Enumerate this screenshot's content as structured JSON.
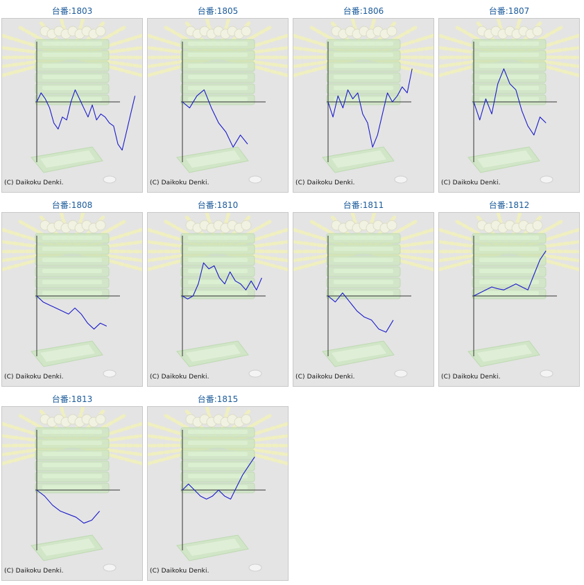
{
  "copyright": "(C) Daikoku Denki.",
  "chart_data": [
    {
      "type": "line",
      "title": "台番:1803",
      "ylim": [
        -1,
        1
      ],
      "values": [
        0,
        0.15,
        0.05,
        -0.1,
        -0.35,
        -0.45,
        -0.25,
        -0.3,
        0,
        0.2,
        0.05,
        -0.1,
        -0.25,
        -0.05,
        -0.3,
        -0.2,
        -0.25,
        -0.35,
        -0.4,
        -0.7,
        -0.8,
        -0.5,
        -0.2,
        0.1
      ]
    },
    {
      "type": "line",
      "title": "台番:1805",
      "ylim": [
        -1,
        1
      ],
      "values": [
        0,
        -0.1,
        0.1,
        0.2,
        -0.1,
        -0.35,
        -0.5,
        -0.75,
        -0.55,
        -0.7
      ]
    },
    {
      "type": "line",
      "title": "台番:1806",
      "ylim": [
        -1,
        1
      ],
      "values": [
        0,
        -0.25,
        0.1,
        -0.1,
        0.2,
        0.05,
        0.15,
        -0.2,
        -0.35,
        -0.75,
        -0.55,
        -0.2,
        0.15,
        0,
        0.1,
        0.25,
        0.15,
        0.55
      ]
    },
    {
      "type": "line",
      "title": "台番:1807",
      "ylim": [
        -1,
        1
      ],
      "values": [
        0,
        -0.3,
        0.05,
        -0.2,
        0.3,
        0.55,
        0.3,
        0.2,
        -0.15,
        -0.4,
        -0.55,
        -0.25,
        -0.35
      ]
    },
    {
      "type": "line",
      "title": "台番:1808",
      "ylim": [
        -1,
        1
      ],
      "values": [
        0,
        -0.1,
        -0.15,
        -0.2,
        -0.25,
        -0.3,
        -0.2,
        -0.3,
        -0.45,
        -0.55,
        -0.45,
        -0.5
      ]
    },
    {
      "type": "line",
      "title": "台番:1810",
      "ylim": [
        -1,
        1
      ],
      "values": [
        0,
        -0.05,
        0,
        0.2,
        0.55,
        0.45,
        0.5,
        0.3,
        0.2,
        0.4,
        0.25,
        0.2,
        0.1,
        0.25,
        0.1,
        0.3
      ]
    },
    {
      "type": "line",
      "title": "台番:1811",
      "ylim": [
        -1,
        1
      ],
      "values": [
        0,
        -0.1,
        0.05,
        -0.1,
        -0.25,
        -0.35,
        -0.4,
        -0.55,
        -0.6,
        -0.4
      ]
    },
    {
      "type": "line",
      "title": "台番:1812",
      "ylim": [
        -1,
        1
      ],
      "values": [
        0,
        0.05,
        0.1,
        0.15,
        0.12,
        0.1,
        0.15,
        0.2,
        0.15,
        0.1,
        0.35,
        0.6,
        0.75
      ]
    },
    {
      "type": "line",
      "title": "台番:1813",
      "ylim": [
        -1,
        1
      ],
      "values": [
        0,
        -0.1,
        -0.25,
        -0.35,
        -0.4,
        -0.45,
        -0.55,
        -0.5,
        -0.35
      ]
    },
    {
      "type": "line",
      "title": "台番:1815",
      "ylim": [
        -1,
        1
      ],
      "values": [
        0,
        0.1,
        0,
        -0.1,
        -0.15,
        -0.1,
        0,
        -0.1,
        -0.15,
        0.05,
        0.25,
        0.4,
        0.55
      ]
    }
  ]
}
